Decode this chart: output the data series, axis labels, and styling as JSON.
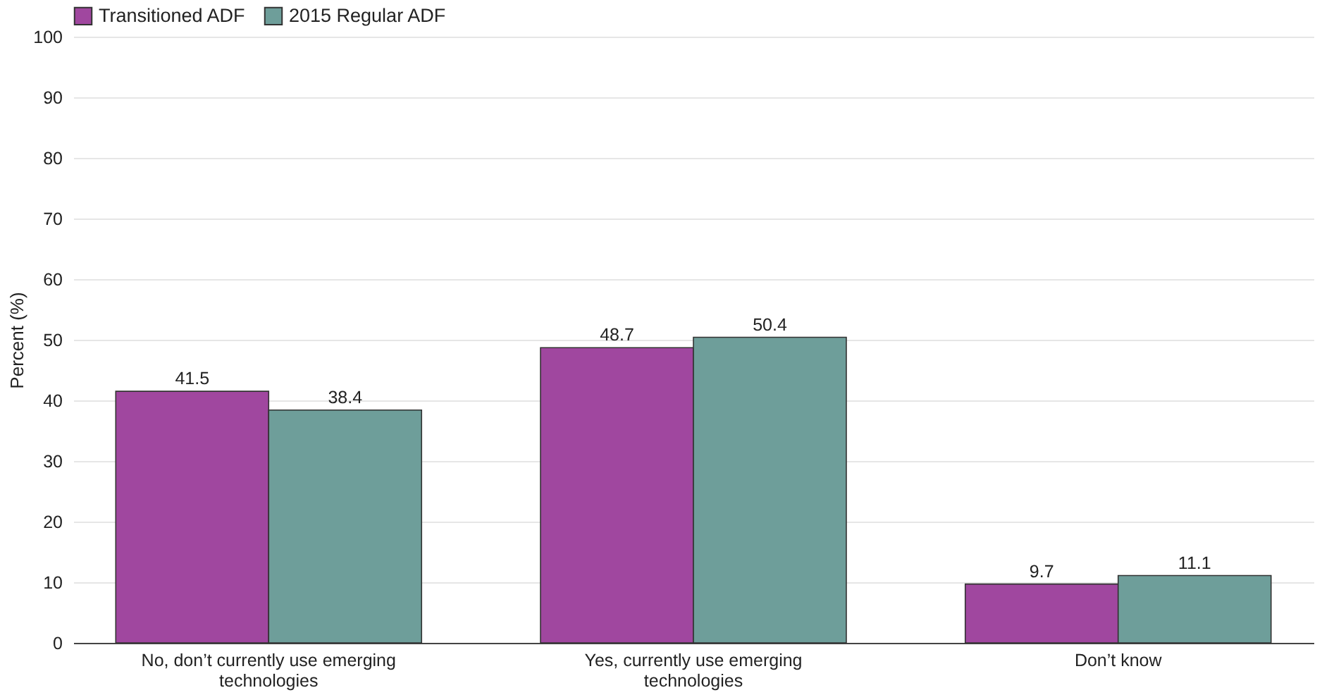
{
  "chart_data": {
    "type": "bar",
    "ylabel": "Percent (%)",
    "categories": [
      "No, don’t currently use emerging technologies",
      "Yes, currently use emerging technologies",
      "Don’t know"
    ],
    "series": [
      {
        "name": "Transitioned ADF",
        "color": "#a0479f",
        "values": [
          41.5,
          48.7,
          9.7
        ]
      },
      {
        "name": "2015 Regular ADF",
        "color": "#6e9e9a",
        "values": [
          38.4,
          50.4,
          11.1
        ]
      }
    ],
    "ylim": [
      0,
      100
    ],
    "yticks": [
      0,
      10,
      20,
      30,
      40,
      50,
      60,
      70,
      80,
      90,
      100
    ],
    "grid": "y",
    "legend": "top left",
    "data_labels": true
  }
}
